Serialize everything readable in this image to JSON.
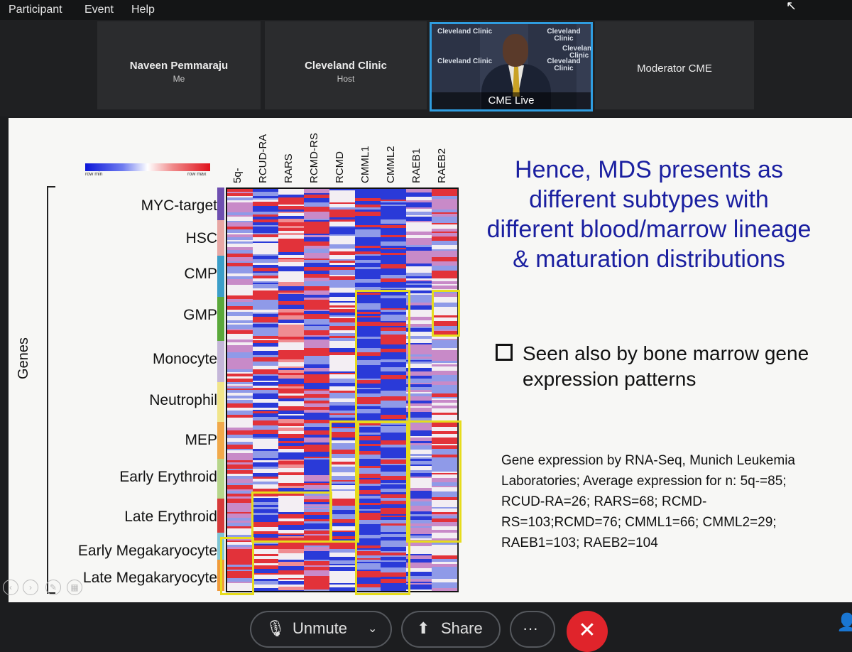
{
  "menu": {
    "participant": "Participant",
    "event": "Event",
    "help": "Help"
  },
  "participants": [
    {
      "name": "Naveen Pemmaraju",
      "role": "Me"
    },
    {
      "name": "Cleveland Clinic",
      "role": "Host"
    },
    {
      "name": "CME Live",
      "role": "",
      "logo_text": "Cleveland Clinic"
    },
    {
      "name": "Moderator CME",
      "role": ""
    }
  ],
  "slide": {
    "colorbar": {
      "min_label": "row min",
      "max_label": "row max",
      "min_color": "#0b16d8",
      "max_color": "#e0121c"
    },
    "columns": [
      "5q-",
      "RCUD-RA",
      "RARS",
      "RCMD-RS",
      "RCMD",
      "CMML1",
      "CMML2",
      "RAEB1",
      "RAEB2"
    ],
    "rows": [
      "MYC-target",
      "HSC",
      "CMP",
      "GMP",
      "Monocyte",
      "Neutrophil",
      "MEP",
      "Early Erythroid",
      "Late Erythroid",
      "Early Megakaryocyte",
      "Late Megakaryocyte"
    ],
    "axis_label": "Genes",
    "headline": "Hence, MDS presents as different subtypes with different blood/marrow lineage & maturation distributions",
    "bullet": "Seen also by bone marrow gene expression patterns",
    "footnote": "Gene expression by RNA-Seq, Munich Leukemia Laboratories; Average expression for n: 5q-=85; RCUD-RA=26; RARS=68; RCMD-RS=103;RCMD=76; CMML1=66; CMML2=29; RAEB1=103; RAEB2=104",
    "highlight_color": "#e6dc1c"
  },
  "controls": {
    "unmute": "Unmute",
    "share": "Share",
    "more": "···",
    "leave": "✕"
  }
}
